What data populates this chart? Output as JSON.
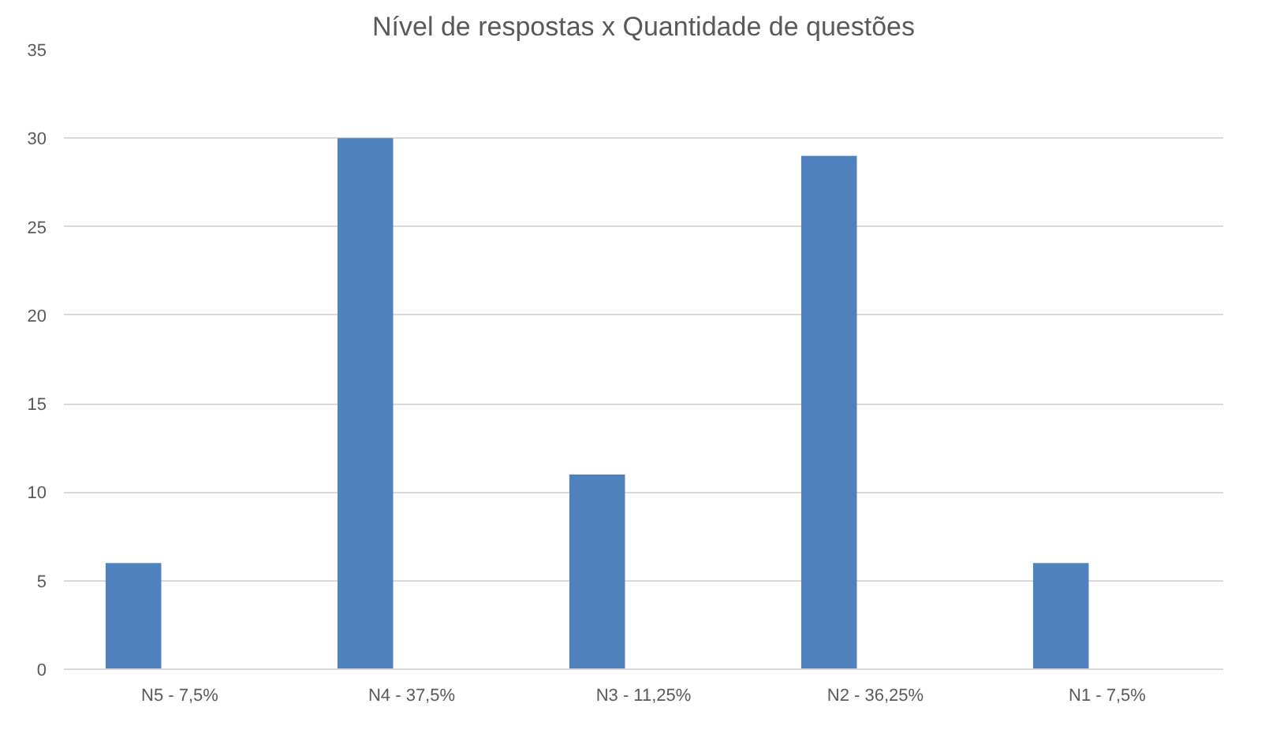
{
  "chart_data": {
    "type": "bar",
    "title": "Nível de respostas x Quantidade de questões",
    "categories": [
      "N5 - 7,5%",
      "N4 - 37,5%",
      "N3 - 11,25%",
      "N2 - 36,25%",
      "N1 - 7,5%"
    ],
    "values": [
      6,
      30,
      11,
      29,
      6
    ],
    "color": "#4f81bd",
    "ylim": [
      0,
      35
    ],
    "yticks": [
      0,
      5,
      10,
      15,
      20,
      25,
      30,
      35
    ],
    "grid": "y"
  }
}
